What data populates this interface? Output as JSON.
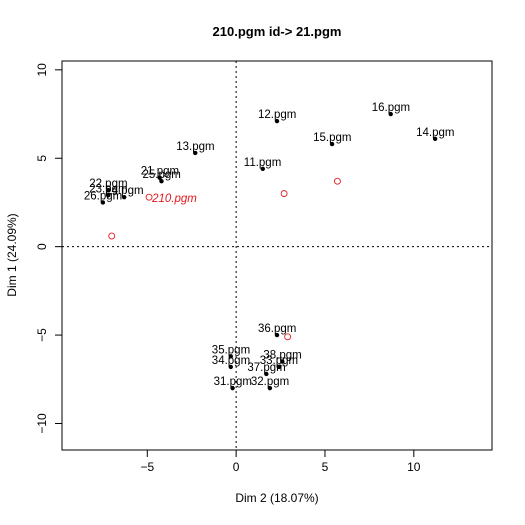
{
  "chart_data": {
    "type": "scatter",
    "title": "210.pgm  id->  21.pgm",
    "xlabel": "Dim 2 (18.07%)",
    "ylabel": "Dim 1 (24.09%)",
    "xlim": [
      -9.8,
      14.4
    ],
    "ylim": [
      -11.5,
      10.5
    ],
    "xticks": [
      -5,
      0,
      5,
      10
    ],
    "yticks": [
      -10,
      -5,
      0,
      5,
      10
    ],
    "reference_lines": {
      "x": 0,
      "y": 0,
      "style": "dotted"
    },
    "grid": false,
    "series": [
      {
        "points": [
          {
            "label": "16.pgm",
            "x": 8.7,
            "y": 7.5
          },
          {
            "label": "14.pgm",
            "x": 11.2,
            "y": 6.1
          },
          {
            "label": "12.pgm",
            "x": 2.3,
            "y": 7.1
          },
          {
            "label": "15.pgm",
            "x": 5.4,
            "y": 5.8
          },
          {
            "label": "13.pgm",
            "x": -2.3,
            "y": 5.3
          },
          {
            "label": "11.pgm",
            "x": 1.5,
            "y": 4.4
          },
          {
            "label": "21.pgm",
            "x": -4.3,
            "y": 3.9
          },
          {
            "label": "25.pgm",
            "x": -4.2,
            "y": 3.7
          },
          {
            "label": "22.pgm",
            "x": -7.2,
            "y": 3.2
          },
          {
            "label": "23.pgm",
            "x": -7.2,
            "y": 2.9
          },
          {
            "label": "26.pgm",
            "x": -7.5,
            "y": 2.5
          },
          {
            "label": "24.pgm",
            "x": -6.3,
            "y": 2.8
          },
          {
            "label": "36.pgm",
            "x": 2.3,
            "y": -5.0
          },
          {
            "label": "38.pgm",
            "x": 2.6,
            "y": -6.5
          },
          {
            "label": "35.pgm",
            "x": -0.3,
            "y": -6.2
          },
          {
            "label": "33.pgm",
            "x": 2.4,
            "y": -6.8
          },
          {
            "label": "34.pgm",
            "x": -0.3,
            "y": -6.8
          },
          {
            "label": "37.pgm",
            "x": 1.7,
            "y": -7.2
          },
          {
            "label": "31.pgm",
            "x": -0.2,
            "y": -8.0
          },
          {
            "label": "32.pgm",
            "x": 1.9,
            "y": -8.0
          }
        ]
      },
      {
        "marker": "open-circle",
        "points": [
          {
            "x": -7.0,
            "y": 0.6
          },
          {
            "x": 2.7,
            "y": 3.0
          },
          {
            "x": 5.7,
            "y": 3.7
          },
          {
            "x": 2.9,
            "y": -5.1
          }
        ]
      },
      {
        "highlight": true,
        "points": [
          {
            "label": "210.pgm",
            "x": -4.9,
            "y": 2.8
          }
        ]
      }
    ],
    "colors": {
      "points": "#000000",
      "highlight": "#e41a1c",
      "axes": "#000000"
    }
  }
}
